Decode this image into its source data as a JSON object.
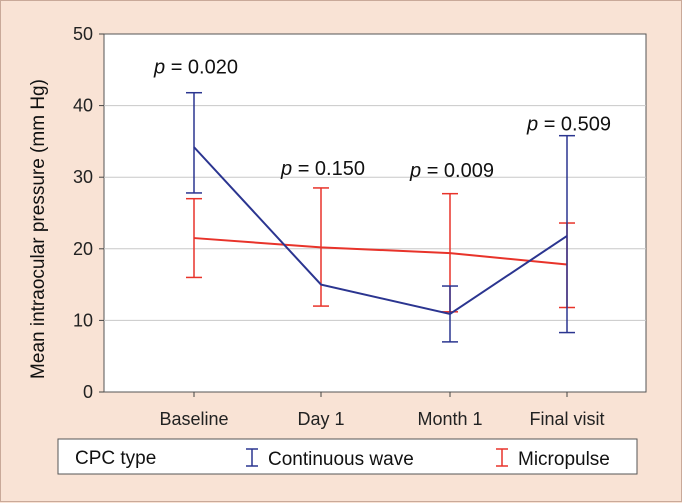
{
  "chart_data": {
    "type": "line",
    "title": "",
    "xlabel": "",
    "ylabel": "Mean intraocular pressure (mm Hg)",
    "ylim": [
      0,
      50
    ],
    "yticks": [
      0,
      10,
      20,
      30,
      40,
      50
    ],
    "grid": true,
    "categories": [
      "Baseline",
      "Day 1",
      "Month 1",
      "Final visit"
    ],
    "series": [
      {
        "name": "Continuous wave",
        "color": "#2b3590",
        "values": [
          34.2,
          15.0,
          10.9,
          21.8
        ],
        "error_low": [
          27.8,
          null,
          7.0,
          8.3
        ],
        "error_high": [
          41.8,
          null,
          14.8,
          35.8
        ]
      },
      {
        "name": "Micropulse",
        "color": "#e8332a",
        "values": [
          21.5,
          20.2,
          19.4,
          17.8
        ],
        "error_low": [
          16.0,
          12.0,
          11.2,
          11.8
        ],
        "error_high": [
          27.0,
          28.5,
          27.7,
          23.6
        ]
      }
    ],
    "annotations": [
      {
        "category": "Baseline",
        "p": "p",
        "rest": " = 0.020",
        "y": 44.5
      },
      {
        "category": "Day 1",
        "p": "p",
        "rest": " = 0.150",
        "y": 30.3
      },
      {
        "category": "Month 1",
        "p": "p",
        "rest": " = 0.009",
        "y": 30.0
      },
      {
        "category": "Final visit",
        "p": "p",
        "rest": " = 0.509",
        "y": 36.5
      }
    ],
    "legend": {
      "title": "CPC type",
      "position": "bottom",
      "entries": [
        "Continuous wave",
        "Micropulse"
      ]
    }
  }
}
